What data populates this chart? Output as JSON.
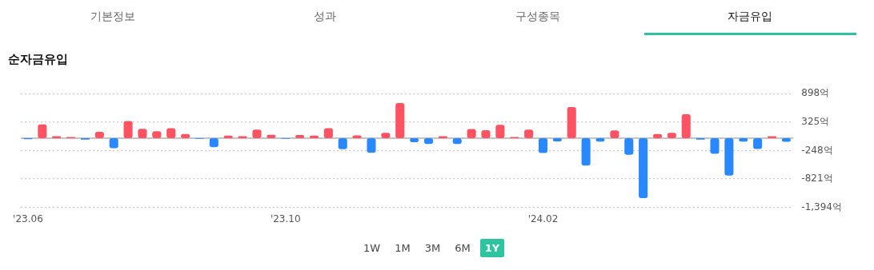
{
  "chart_data": {
    "type": "bar",
    "title": "순자금유입",
    "annotations": [
      "기본정보",
      "성과",
      "구성종목",
      "자금유입",
      "1W",
      "1M",
      "3M",
      "6M",
      "1Y"
    ],
    "categories": [
      "'23.06",
      null,
      null,
      null,
      null,
      null,
      null,
      null,
      null,
      null,
      null,
      null,
      null,
      null,
      null,
      null,
      null,
      null,
      "'23.10",
      null,
      null,
      null,
      null,
      null,
      null,
      null,
      null,
      null,
      null,
      null,
      null,
      null,
      null,
      null,
      null,
      null,
      "'24.02",
      null,
      null,
      null,
      null,
      null,
      null,
      null,
      null,
      null,
      null,
      null,
      null,
      null,
      null,
      null,
      null,
      null
    ],
    "values": [
      -20,
      276,
      41,
      25,
      -30,
      129,
      -200,
      347,
      189,
      140,
      200,
      85,
      -14,
      -183,
      52,
      41,
      172,
      68,
      -14,
      65,
      52,
      200,
      -222,
      57,
      -293,
      107,
      708,
      -79,
      -118,
      41,
      -118,
      183,
      161,
      271,
      25,
      172,
      -298,
      -63,
      626,
      -550,
      -68,
      156,
      -336,
      -1209,
      85,
      107,
      484,
      -30,
      -315,
      -752,
      -68,
      -216,
      41,
      -74
    ],
    "colors": [
      "#2a88ff",
      "#ff5263",
      "#ff5263",
      "#ff5263",
      "#2a88ff",
      "#ff5263",
      "#2a88ff",
      "#ff5263",
      "#ff5263",
      "#ff5263",
      "#ff5263",
      "#ff5263",
      "#2a88ff",
      "#2a88ff",
      "#ff5263",
      "#ff5263",
      "#ff5263",
      "#ff5263",
      "#2a88ff",
      "#ff5263",
      "#ff5263",
      "#ff5263",
      "#2a88ff",
      "#ff5263",
      "#2a88ff",
      "#ff5263",
      "#ff5263",
      "#2a88ff",
      "#2a88ff",
      "#ff5263",
      "#2a88ff",
      "#ff5263",
      "#ff5263",
      "#ff5263",
      "#ff5263",
      "#ff5263",
      "#2a88ff",
      "#2a88ff",
      "#ff5263",
      "#2a88ff",
      "#2a88ff",
      "#ff5263",
      "#2a88ff",
      "#2a88ff",
      "#ff5263",
      "#ff5263",
      "#ff5263",
      "#2a88ff",
      "#2a88ff",
      "#2a88ff",
      "#2a88ff",
      "#2a88ff",
      "#ff5263",
      "#2a88ff"
    ],
    "ylim": [
      -1394,
      898
    ],
    "yticks": [
      {
        "value": 898,
        "label": "898억"
      },
      {
        "value": 325,
        "label": "325억"
      },
      {
        "value": -248,
        "label": "-248억"
      },
      {
        "value": -821,
        "label": "-821억"
      },
      {
        "value": -1394,
        "label": "-1,394억"
      }
    ],
    "ref_lines": [
      {
        "axis": "y",
        "value": 0,
        "color": "#888888"
      }
    ],
    "grid": "y",
    "legend": false
  }
}
